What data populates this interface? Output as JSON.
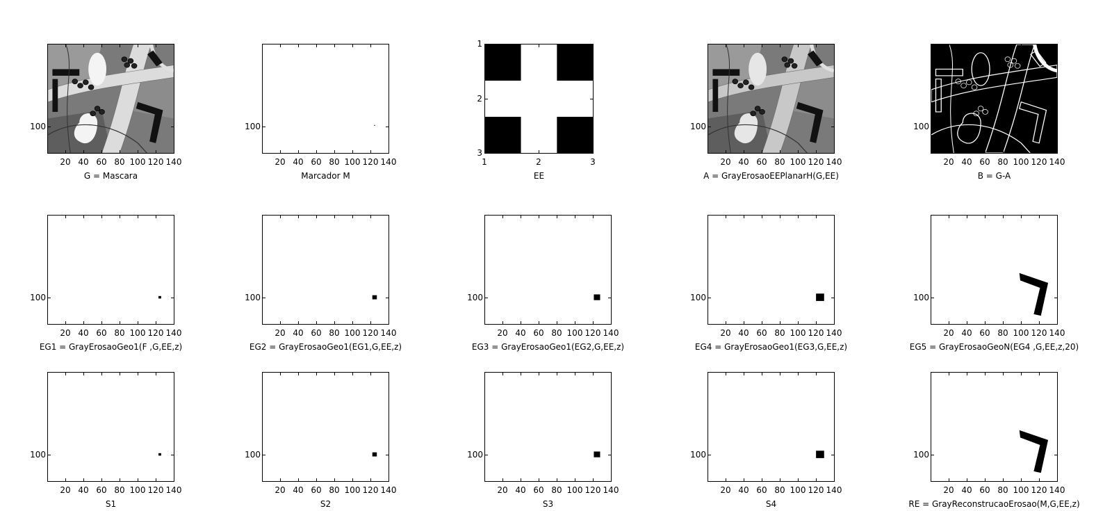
{
  "figure": {
    "panels": [
      {
        "id": "g",
        "caption": "G = Mascara",
        "kind": "aerial",
        "variant": "mask"
      },
      {
        "id": "m",
        "caption": "Marcador M",
        "kind": "blank",
        "blob": {
          "x": 124,
          "y": 98,
          "w": 1,
          "h": 1
        }
      },
      {
        "id": "ee",
        "caption": "EE",
        "kind": "ee"
      },
      {
        "id": "a",
        "caption": "A = GrayErosaoEEPlanarH(G,EE)",
        "kind": "aerial",
        "variant": "eroded"
      },
      {
        "id": "b",
        "caption": "B = G-A",
        "kind": "aerial",
        "variant": "edges"
      },
      {
        "id": "eg1",
        "caption": "EG1 = GrayErosaoGeo1(F ,G,EE,z)",
        "kind": "blank",
        "blob": {
          "x": 123,
          "y": 98,
          "w": 3,
          "h": 3
        }
      },
      {
        "id": "eg2",
        "caption": "EG2 = GrayErosaoGeo1(EG1,G,EE,z)",
        "kind": "blank",
        "blob": {
          "x": 122,
          "y": 97,
          "w": 5,
          "h": 5
        }
      },
      {
        "id": "eg3",
        "caption": "EG3 = GrayErosaoGeo1(EG2,G,EE,z)",
        "kind": "blank",
        "blob": {
          "x": 121,
          "y": 96,
          "w": 7,
          "h": 7
        }
      },
      {
        "id": "eg4",
        "caption": "EG4 = GrayErosaoGeo1(EG3,G,EE,z)",
        "kind": "blank",
        "blob": {
          "x": 120,
          "y": 95,
          "w": 9,
          "h": 9
        }
      },
      {
        "id": "eg5",
        "caption": "EG5  = GrayErosaoGeoN(EG4 ,G,EE,z,20)",
        "kind": "shape7"
      },
      {
        "id": "s1",
        "caption": "S1",
        "kind": "blank",
        "blob": {
          "x": 123,
          "y": 98,
          "w": 3,
          "h": 3
        }
      },
      {
        "id": "s2",
        "caption": "S2",
        "kind": "blank",
        "blob": {
          "x": 122,
          "y": 97,
          "w": 5,
          "h": 5
        }
      },
      {
        "id": "s3",
        "caption": "S3",
        "kind": "blank",
        "blob": {
          "x": 121,
          "y": 96,
          "w": 7,
          "h": 7
        }
      },
      {
        "id": "s4",
        "caption": "S4",
        "kind": "blank",
        "blob": {
          "x": 120,
          "y": 95,
          "w": 9,
          "h": 9
        }
      },
      {
        "id": "re",
        "caption": "RE = GrayReconstrucaoErosao(M,G,EE,z)",
        "kind": "shape7"
      }
    ],
    "image_axes": {
      "xticks": [
        "20",
        "40",
        "60",
        "80",
        "100",
        "120",
        "140"
      ],
      "yticks": [
        "100"
      ],
      "xlim": [
        0,
        140
      ],
      "ylim": [
        0,
        132
      ]
    },
    "ee_axes": {
      "xticks": [
        "1",
        "2",
        "3"
      ],
      "yticks": [
        "1",
        "2",
        "3"
      ],
      "matrix": [
        [
          0,
          1,
          0
        ],
        [
          1,
          1,
          1
        ],
        [
          0,
          1,
          0
        ]
      ]
    }
  },
  "chart_data": {
    "type": "heatmap",
    "colormap": "gray",
    "structuring_element_EE": [
      [
        0,
        1,
        0
      ],
      [
        1,
        1,
        1
      ],
      [
        0,
        1,
        0
      ]
    ],
    "image_size": [
      132,
      140
    ]
  }
}
